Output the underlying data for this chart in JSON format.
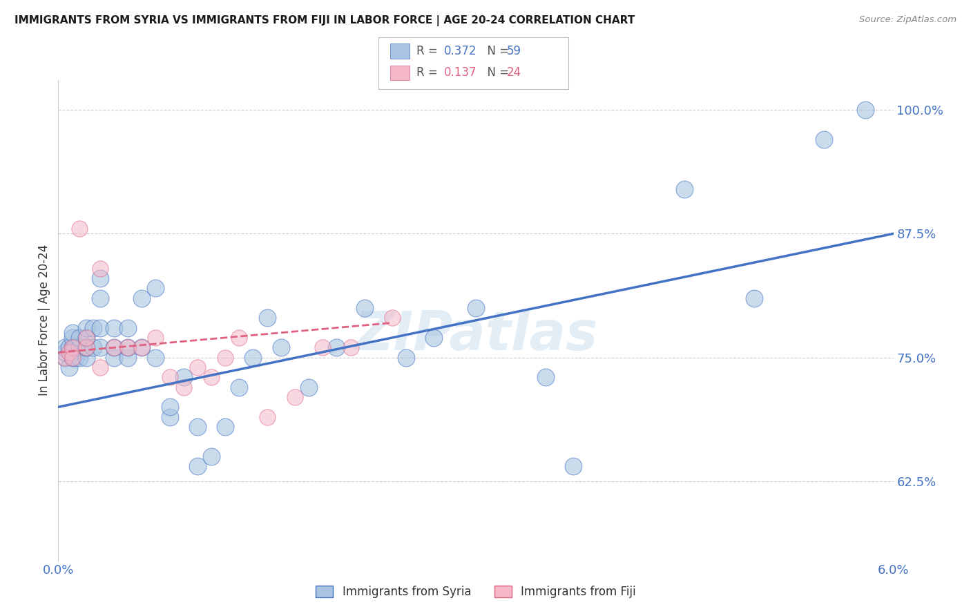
{
  "title": "IMMIGRANTS FROM SYRIA VS IMMIGRANTS FROM FIJI IN LABOR FORCE | AGE 20-24 CORRELATION CHART",
  "source": "Source: ZipAtlas.com",
  "ylabel": "In Labor Force | Age 20-24",
  "yticks": [
    0.625,
    0.75,
    0.875,
    1.0
  ],
  "ytick_labels": [
    "62.5%",
    "75.0%",
    "87.5%",
    "100.0%"
  ],
  "xmin": 0.0,
  "xmax": 0.06,
  "ymin": 0.545,
  "ymax": 1.03,
  "legend_syria_R": "0.372",
  "legend_syria_N": "59",
  "legend_fiji_R": "0.137",
  "legend_fiji_N": "24",
  "legend_label_syria": "Immigrants from Syria",
  "legend_label_fiji": "Immigrants from Fiji",
  "color_syria": "#a8c4e0",
  "color_fiji": "#f4b8c8",
  "color_syria_line": "#4472c4",
  "color_fiji_line": "#e06080",
  "watermark": "ZIPatlas",
  "syria_line_x0": 0.0,
  "syria_line_y0": 0.7,
  "syria_line_x1": 0.06,
  "syria_line_y1": 0.875,
  "fiji_line_x0": 0.0,
  "fiji_line_y0": 0.755,
  "fiji_line_x1": 0.024,
  "fiji_line_y1": 0.785,
  "syria_x": [
    0.0005,
    0.0005,
    0.0005,
    0.0008,
    0.0008,
    0.001,
    0.001,
    0.001,
    0.001,
    0.001,
    0.0012,
    0.0012,
    0.0015,
    0.0015,
    0.0015,
    0.002,
    0.002,
    0.002,
    0.002,
    0.002,
    0.0025,
    0.0025,
    0.003,
    0.003,
    0.003,
    0.003,
    0.004,
    0.004,
    0.004,
    0.005,
    0.005,
    0.005,
    0.006,
    0.006,
    0.007,
    0.007,
    0.008,
    0.008,
    0.009,
    0.01,
    0.01,
    0.011,
    0.012,
    0.013,
    0.014,
    0.015,
    0.016,
    0.018,
    0.02,
    0.022,
    0.025,
    0.027,
    0.03,
    0.035,
    0.037,
    0.045,
    0.05,
    0.055,
    0.058
  ],
  "syria_y": [
    0.75,
    0.755,
    0.76,
    0.74,
    0.76,
    0.75,
    0.755,
    0.76,
    0.77,
    0.775,
    0.75,
    0.76,
    0.75,
    0.76,
    0.77,
    0.75,
    0.76,
    0.76,
    0.77,
    0.78,
    0.76,
    0.78,
    0.76,
    0.78,
    0.83,
    0.81,
    0.75,
    0.76,
    0.78,
    0.75,
    0.76,
    0.78,
    0.76,
    0.81,
    0.82,
    0.75,
    0.69,
    0.7,
    0.73,
    0.64,
    0.68,
    0.65,
    0.68,
    0.72,
    0.75,
    0.79,
    0.76,
    0.72,
    0.76,
    0.8,
    0.75,
    0.77,
    0.8,
    0.73,
    0.64,
    0.92,
    0.81,
    0.97,
    1.0
  ],
  "fiji_x": [
    0.0005,
    0.0008,
    0.001,
    0.001,
    0.0015,
    0.002,
    0.002,
    0.003,
    0.003,
    0.004,
    0.005,
    0.006,
    0.007,
    0.008,
    0.009,
    0.01,
    0.011,
    0.012,
    0.013,
    0.015,
    0.017,
    0.019,
    0.021,
    0.024
  ],
  "fiji_y": [
    0.75,
    0.755,
    0.76,
    0.75,
    0.88,
    0.76,
    0.77,
    0.84,
    0.74,
    0.76,
    0.76,
    0.76,
    0.77,
    0.73,
    0.72,
    0.74,
    0.73,
    0.75,
    0.77,
    0.69,
    0.71,
    0.76,
    0.76,
    0.79
  ]
}
